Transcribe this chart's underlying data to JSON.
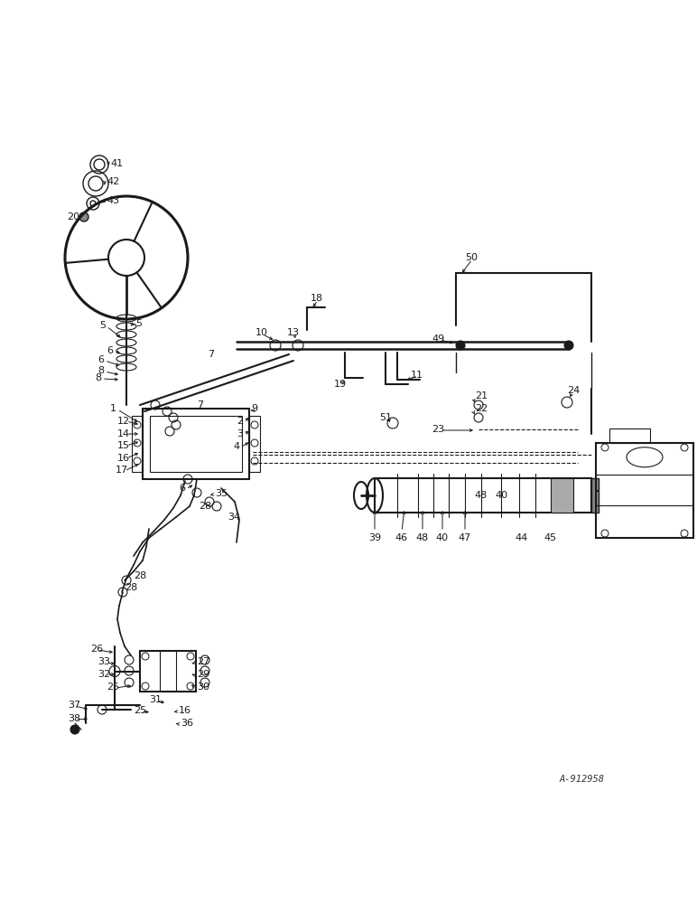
{
  "bg_color": "#ffffff",
  "line_color": "#1a1a1a",
  "watermark": "A-912958",
  "fig_w": 7.72,
  "fig_h": 10.0,
  "dpi": 100
}
